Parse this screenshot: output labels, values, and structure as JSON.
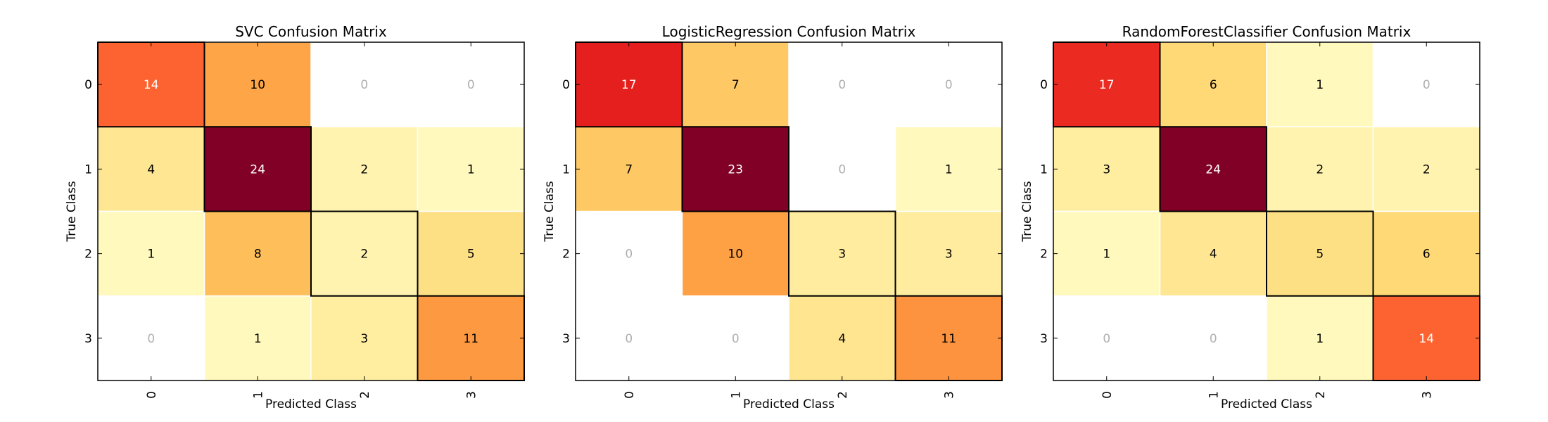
{
  "chart_data": [
    {
      "type": "heatmap",
      "title": "SVC Confusion Matrix",
      "xlabel": "Predicted Class",
      "ylabel": "True Class",
      "x_ticks": [
        "0",
        "1",
        "2",
        "3"
      ],
      "y_ticks": [
        "0",
        "1",
        "2",
        "3"
      ],
      "values": [
        [
          14,
          10,
          0,
          0
        ],
        [
          4,
          24,
          2,
          1
        ],
        [
          1,
          8,
          2,
          5
        ],
        [
          0,
          1,
          3,
          11
        ]
      ]
    },
    {
      "type": "heatmap",
      "title": "LogisticRegression Confusion Matrix",
      "xlabel": "Predicted Class",
      "ylabel": "True Class",
      "x_ticks": [
        "0",
        "1",
        "2",
        "3"
      ],
      "y_ticks": [
        "0",
        "1",
        "2",
        "3"
      ],
      "values": [
        [
          17,
          7,
          0,
          0
        ],
        [
          7,
          23,
          0,
          1
        ],
        [
          0,
          10,
          3,
          3
        ],
        [
          0,
          0,
          4,
          11
        ]
      ]
    },
    {
      "type": "heatmap",
      "title": "RandomForestClassifier Confusion Matrix",
      "xlabel": "Predicted Class",
      "ylabel": "True Class",
      "x_ticks": [
        "0",
        "1",
        "2",
        "3"
      ],
      "y_ticks": [
        "0",
        "1",
        "2",
        "3"
      ],
      "values": [
        [
          17,
          6,
          1,
          0
        ],
        [
          3,
          24,
          2,
          2
        ],
        [
          1,
          4,
          5,
          6
        ],
        [
          0,
          0,
          1,
          14
        ]
      ]
    }
  ],
  "colormap": "YlOrRd",
  "colors": {
    "zero_text": "#b0b0b0",
    "dark_text": "#000000",
    "light_text": "#ffffff",
    "diagonal_border": "#000000",
    "cell_border": "#ffffff"
  }
}
